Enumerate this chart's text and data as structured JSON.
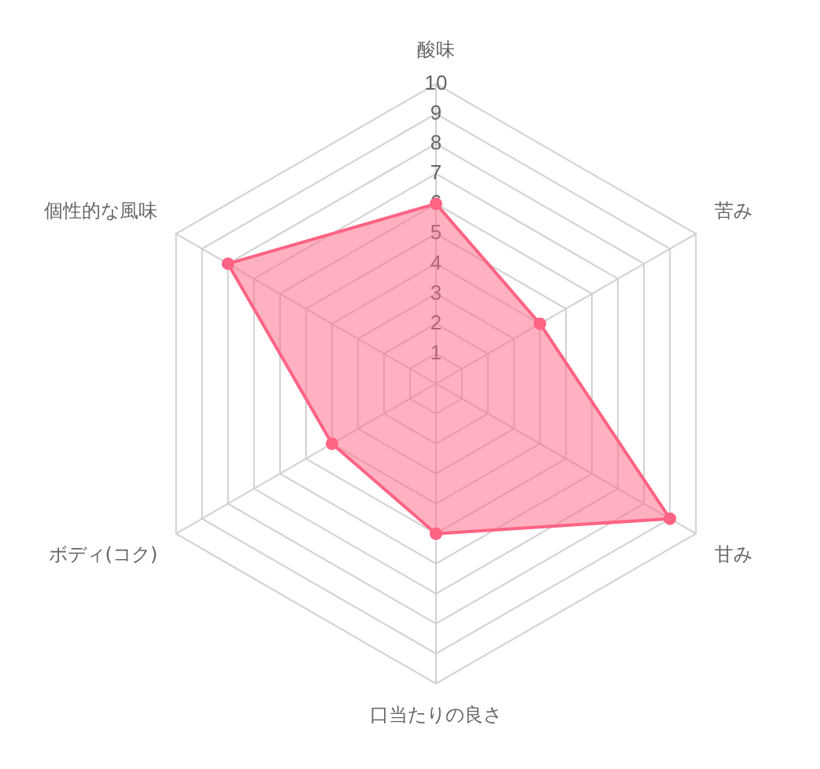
{
  "chart_data": {
    "type": "radar",
    "categories": [
      "酸味",
      "苦み",
      "甘み",
      "口当たりの良さ",
      "ボディ(コク)",
      "個性的な風味"
    ],
    "series": [
      {
        "color": "#ff6384",
        "values": [
          6,
          4,
          9,
          5,
          4,
          8
        ]
      }
    ],
    "ylim": [
      0,
      10
    ],
    "yticks": [
      1,
      2,
      3,
      4,
      5,
      6,
      7,
      8,
      9,
      10
    ],
    "grid": true,
    "legend": false,
    "marker": "circle"
  }
}
